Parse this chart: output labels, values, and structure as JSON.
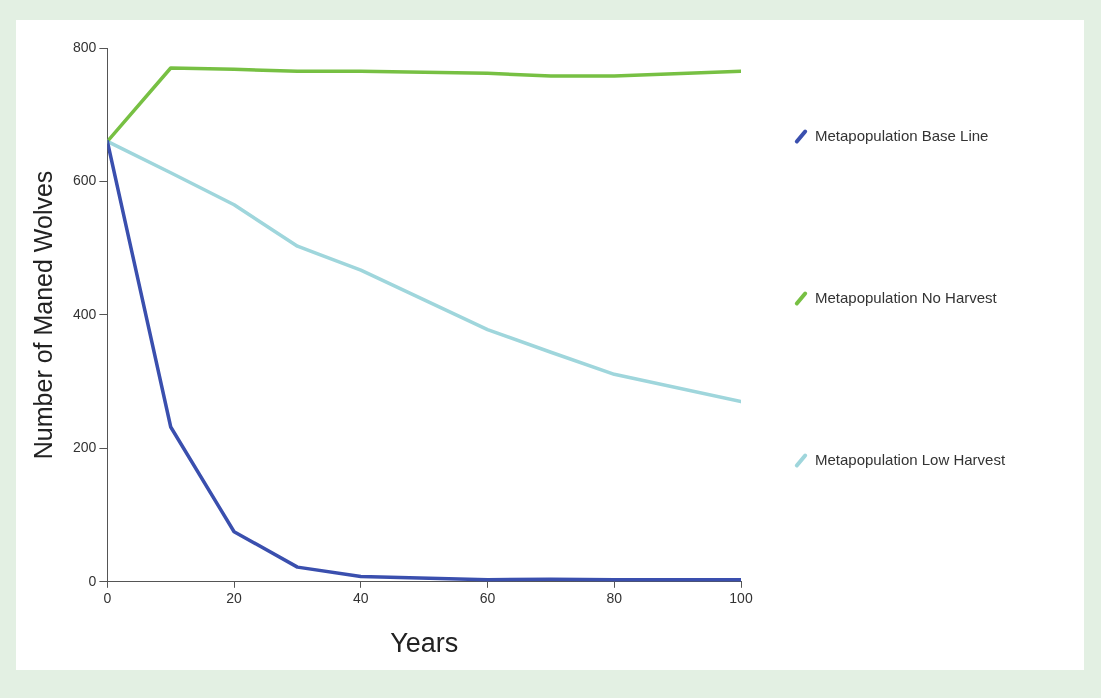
{
  "chart_data": {
    "type": "line",
    "xlabel": "Years",
    "ylabel": "Number of Maned Wolves",
    "x": [
      0,
      10,
      20,
      30,
      40,
      60,
      70,
      80,
      100
    ],
    "series": [
      {
        "name": "Metapopulation Base Line",
        "color": "#3a4fae",
        "values": [
          660,
          232,
          75,
          22,
          8,
          3,
          4,
          3,
          3
        ]
      },
      {
        "name": "Metapopulation No Harvest",
        "color": "#77c043",
        "values": [
          660,
          770,
          768,
          765,
          765,
          762,
          758,
          758,
          765
        ]
      },
      {
        "name": "Metapopulation Low Harvest",
        "color": "#9fd6dc",
        "values": [
          660,
          613,
          565,
          503,
          467,
          378,
          344,
          311,
          270
        ]
      }
    ],
    "xlim": [
      0,
      100
    ],
    "xticks": [
      0,
      20,
      40,
      60,
      80,
      100
    ],
    "ylim": [
      0,
      800
    ],
    "yticks": [
      0,
      200,
      400,
      600,
      800
    ],
    "grid": false,
    "legend": "right",
    "marker": "none",
    "line_style": "solid"
  }
}
